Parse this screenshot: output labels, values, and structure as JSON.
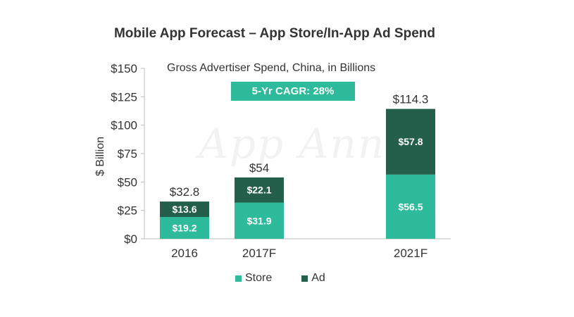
{
  "chart_data": {
    "type": "bar",
    "stacked": true,
    "title": "Mobile App Forecast – App Store/In-App Ad Spend",
    "subtitle": "Gross Advertiser Spend, China, in Billions",
    "annotation": "5-Yr CAGR: 28%",
    "watermark": "App Annie",
    "ylabel": "$ Billion",
    "xlabel": "",
    "ylim": [
      0,
      150
    ],
    "yticks": [
      0,
      25,
      50,
      75,
      100,
      125,
      150
    ],
    "ytick_labels": [
      "$0",
      "$25",
      "$50",
      "$75",
      "$100",
      "$125",
      "$150"
    ],
    "categories": [
      "2016",
      "2017F",
      "2021F"
    ],
    "totals": [
      32.8,
      54,
      114.3
    ],
    "total_labels": [
      "$32.8",
      "$54",
      "$114.3"
    ],
    "series": [
      {
        "name": "Store",
        "color": "#2dbb9b",
        "values": [
          19.2,
          31.9,
          56.5
        ],
        "labels": [
          "$19.2",
          "$31.9",
          "$56.5"
        ]
      },
      {
        "name": "Ad",
        "color": "#245f4c",
        "values": [
          13.6,
          22.1,
          57.8
        ],
        "labels": [
          "$13.6",
          "$22.1",
          "$57.8"
        ]
      }
    ],
    "grid": false,
    "legend_position": "bottom"
  }
}
